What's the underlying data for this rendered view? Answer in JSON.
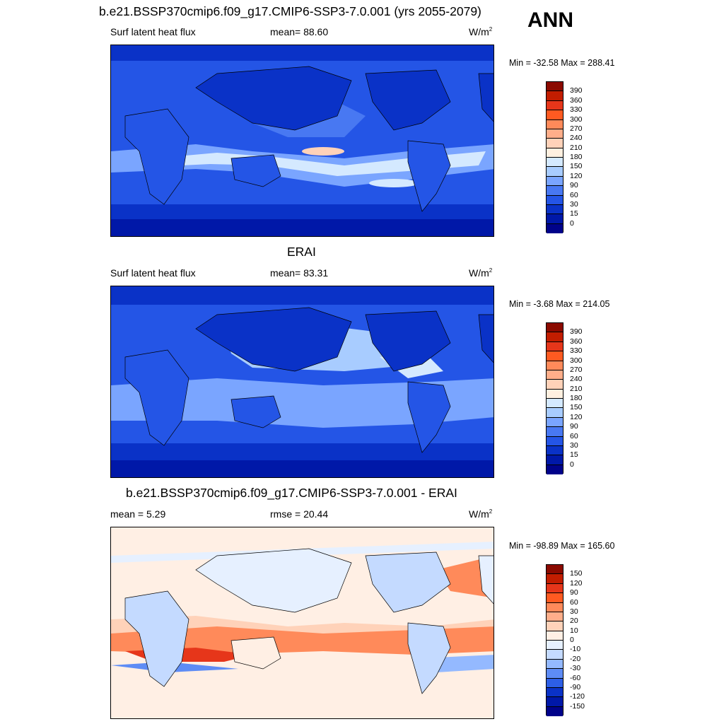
{
  "header": {
    "title": "b.e21.BSSP370cmip6.f09_g17.CMIP6-SSP3-7.0.001 (yrs 2055-2079)",
    "season": "ANN"
  },
  "panels": [
    {
      "id": "model",
      "title": "",
      "left_label": "Surf latent heat flux",
      "center_label": "mean=  88.60",
      "unit": "W/m",
      "unit_sup": "2",
      "minmax": "Min = -32.58 Max = 288.41",
      "levels": [
        "390",
        "360",
        "330",
        "300",
        "270",
        "240",
        "210",
        "180",
        "150",
        "120",
        "90",
        "60",
        "30",
        "15",
        "0"
      ],
      "palette": [
        "#8b0a00",
        "#c21d00",
        "#e6361a",
        "#ff5a21",
        "#ff8a5a",
        "#ffae8a",
        "#ffd2b9",
        "#fff0e0",
        "#d4e9ff",
        "#a8ccff",
        "#7aa5ff",
        "#4878f2",
        "#2455e6",
        "#0a32c7",
        "#0018a8",
        "#00028a"
      ]
    },
    {
      "id": "obs",
      "title": "ERAI",
      "left_label": "Surf latent heat flux",
      "center_label": "mean=  83.31",
      "unit": "W/m",
      "unit_sup": "2",
      "minmax": "Min =  -3.68 Max = 214.05",
      "levels": [
        "390",
        "360",
        "330",
        "300",
        "270",
        "240",
        "210",
        "180",
        "150",
        "120",
        "90",
        "60",
        "30",
        "15",
        "0"
      ],
      "palette": [
        "#8b0a00",
        "#c21d00",
        "#e6361a",
        "#ff5a21",
        "#ff8a5a",
        "#ffae8a",
        "#ffd2b9",
        "#fff0e0",
        "#d4e9ff",
        "#a8ccff",
        "#7aa5ff",
        "#4878f2",
        "#2455e6",
        "#0a32c7",
        "#0018a8",
        "#00028a"
      ]
    },
    {
      "id": "diff",
      "title": "b.e21.BSSP370cmip6.f09_g17.CMIP6-SSP3-7.0.001 - ERAI",
      "left_label": "mean =   5.29",
      "center_label": "rmse =  20.44",
      "unit": "W/m",
      "unit_sup": "2",
      "minmax": "Min = -98.89 Max = 165.60",
      "levels": [
        "150",
        "120",
        "90",
        "60",
        "30",
        "20",
        "10",
        "0",
        "-10",
        "-20",
        "-30",
        "-60",
        "-90",
        "-120",
        "-150"
      ],
      "palette": [
        "#8b0a00",
        "#c21d00",
        "#e6361a",
        "#ff5a21",
        "#ff8a5a",
        "#ffae8a",
        "#ffd2b9",
        "#ffefe4",
        "#e6f0ff",
        "#c4daff",
        "#94b9ff",
        "#5e8cf5",
        "#2d5fe6",
        "#0a32c7",
        "#0018a8",
        "#00028a"
      ]
    }
  ]
}
